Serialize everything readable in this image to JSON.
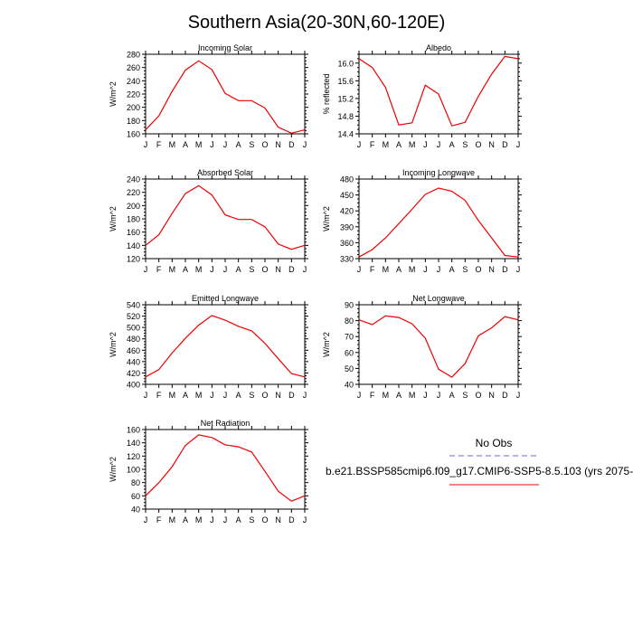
{
  "figure": {
    "title": "Southern Asia(20-30N,60-120E)",
    "legend": {
      "obs_label": "No Obs",
      "obs_color": "#6666ee",
      "model_label": "b.e21.BSSP585cmip6.f09_g17.CMIP6-SSP5-8.5.103 (yrs 2075-",
      "model_color": "#ee0000"
    }
  },
  "chart_data": [
    {
      "type": "line",
      "title": "Incoming Solar",
      "ylabel": "W/m^2",
      "categories": [
        "J",
        "F",
        "M",
        "A",
        "M",
        "J",
        "J",
        "A",
        "S",
        "O",
        "N",
        "D",
        "J"
      ],
      "ylim": [
        160,
        280
      ],
      "yticks": [
        160,
        180,
        200,
        220,
        240,
        260,
        280
      ],
      "series": [
        {
          "values": [
            166,
            187,
            224,
            256,
            270,
            257,
            221,
            210,
            210,
            199,
            170,
            161,
            166
          ]
        }
      ]
    },
    {
      "type": "line",
      "title": "Albedo",
      "ylabel": "% reflected",
      "categories": [
        "J",
        "F",
        "M",
        "A",
        "M",
        "J",
        "J",
        "A",
        "S",
        "O",
        "N",
        "D",
        "J"
      ],
      "ylim": [
        14.4,
        16.2
      ],
      "yticks": [
        14.4,
        14.8,
        15.2,
        15.6,
        16.0
      ],
      "yformat": 1,
      "series": [
        {
          "values": [
            16.1,
            15.9,
            15.45,
            14.6,
            14.65,
            15.5,
            15.3,
            14.58,
            14.66,
            15.25,
            15.75,
            16.15,
            16.1
          ]
        }
      ]
    },
    {
      "type": "line",
      "title": "Absorbed Solar",
      "ylabel": "W/m^2",
      "categories": [
        "J",
        "F",
        "M",
        "A",
        "M",
        "J",
        "J",
        "A",
        "S",
        "O",
        "N",
        "D",
        "J"
      ],
      "ylim": [
        120,
        240
      ],
      "yticks": [
        120,
        140,
        160,
        180,
        200,
        220,
        240
      ],
      "series": [
        {
          "values": [
            140,
            156,
            188,
            218,
            230,
            216,
            186,
            179,
            179,
            168,
            142,
            134,
            140
          ]
        }
      ]
    },
    {
      "type": "line",
      "title": "Incoming Longwave",
      "ylabel": "W/m^2",
      "categories": [
        "J",
        "F",
        "M",
        "A",
        "M",
        "J",
        "J",
        "A",
        "S",
        "O",
        "N",
        "D",
        "J"
      ],
      "ylim": [
        330,
        480
      ],
      "yticks": [
        330,
        360,
        390,
        420,
        450,
        480
      ],
      "series": [
        {
          "values": [
            333,
            347,
            369,
            396,
            423,
            451,
            463,
            457,
            440,
            402,
            369,
            336,
            333
          ]
        }
      ]
    },
    {
      "type": "line",
      "title": "Emitted Longwave",
      "ylabel": "W/m^2",
      "categories": [
        "J",
        "F",
        "M",
        "A",
        "M",
        "J",
        "J",
        "A",
        "S",
        "O",
        "N",
        "D",
        "J"
      ],
      "ylim": [
        400,
        540
      ],
      "yticks": [
        400,
        420,
        440,
        460,
        480,
        500,
        520,
        540
      ],
      "series": [
        {
          "values": [
            413,
            426,
            455,
            481,
            504,
            521,
            513,
            502,
            494,
            472,
            445,
            419,
            413
          ]
        }
      ]
    },
    {
      "type": "line",
      "title": "Net Longwave",
      "ylabel": "W/m^2",
      "categories": [
        "J",
        "F",
        "M",
        "A",
        "M",
        "J",
        "J",
        "A",
        "S",
        "O",
        "N",
        "D",
        "J"
      ],
      "ylim": [
        40,
        90
      ],
      "yticks": [
        40,
        50,
        60,
        70,
        80,
        90
      ],
      "series": [
        {
          "values": [
            80.5,
            77.5,
            83,
            82,
            78,
            69,
            49.5,
            44.5,
            53,
            70.5,
            75.5,
            82.5,
            80.5
          ]
        }
      ]
    },
    {
      "type": "line",
      "title": "Net Radiation",
      "ylabel": "W/m^2",
      "categories": [
        "J",
        "F",
        "M",
        "A",
        "M",
        "J",
        "J",
        "A",
        "S",
        "O",
        "N",
        "D",
        "J"
      ],
      "ylim": [
        40,
        160
      ],
      "yticks": [
        40,
        60,
        80,
        100,
        120,
        140,
        160
      ],
      "series": [
        {
          "values": [
            60,
            80,
            104,
            136,
            152,
            148,
            137,
            134,
            126,
            97,
            67,
            52,
            60
          ]
        }
      ]
    }
  ]
}
